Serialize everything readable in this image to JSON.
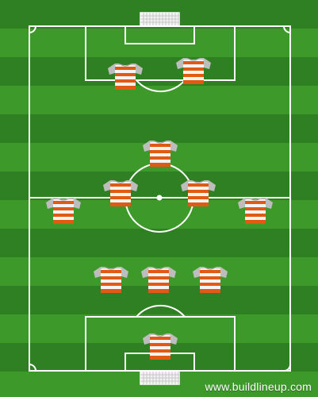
{
  "watermark": "www.buildlineup.com",
  "colors": {
    "grass_dark": "#2f8022",
    "grass_light": "#3d9a2a",
    "lines": "#ffffff",
    "shirt_stripe": "#e05a14",
    "shirt_white": "#f4f4f4",
    "sleeves": "#bdbdbd"
  },
  "formation": {
    "players": [
      {
        "id": "gk",
        "role": "goalkeeper"
      },
      {
        "id": "def-left",
        "role": "defender"
      },
      {
        "id": "def-center",
        "role": "defender"
      },
      {
        "id": "def-right",
        "role": "defender"
      },
      {
        "id": "mid-left",
        "role": "midfielder"
      },
      {
        "id": "mid-center-left",
        "role": "midfielder"
      },
      {
        "id": "mid-center-right",
        "role": "midfielder"
      },
      {
        "id": "mid-right",
        "role": "midfielder"
      },
      {
        "id": "mid-top",
        "role": "midfielder"
      },
      {
        "id": "fwd-left",
        "role": "forward"
      },
      {
        "id": "fwd-right",
        "role": "forward"
      }
    ]
  }
}
